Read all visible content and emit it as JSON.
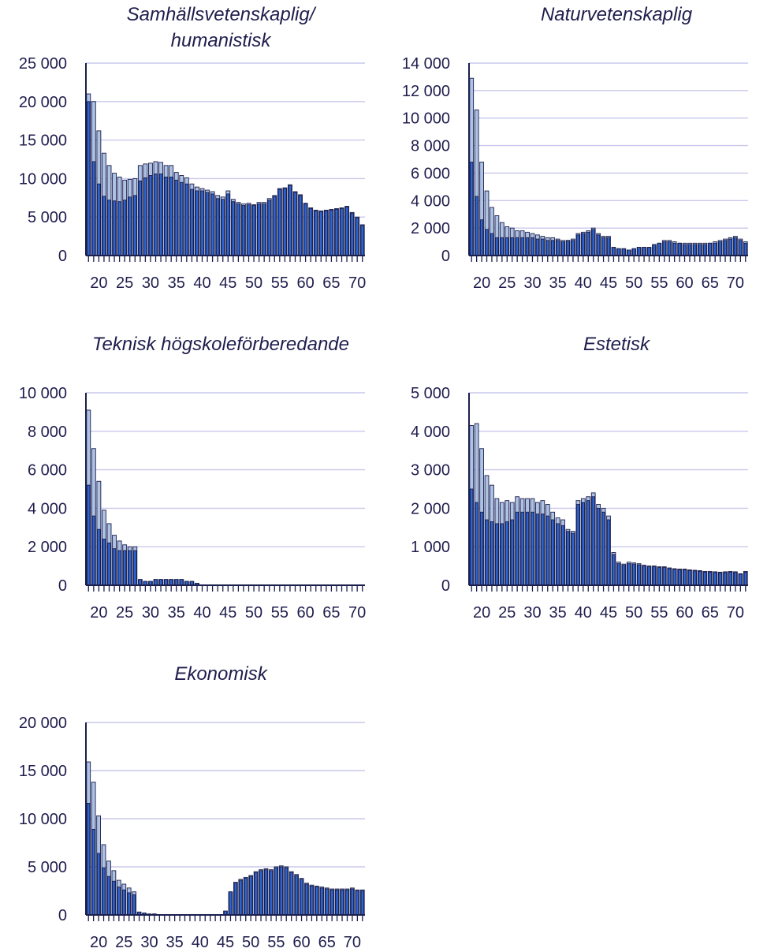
{
  "chart_data": [
    {
      "type": "bar",
      "title_lines": [
        "Samhällsvetenskaplig/",
        "humanistisk"
      ],
      "ylim": [
        0,
        25000
      ],
      "yticks": [
        0,
        5000,
        10000,
        15000,
        20000,
        25000
      ],
      "ytick_labels": [
        "0",
        "5 000",
        "10 000",
        "15 000",
        "20 000",
        "25 000"
      ],
      "xticks": [
        20,
        25,
        30,
        35,
        40,
        45,
        50,
        55,
        60,
        65,
        70
      ],
      "x_start": 18,
      "series": [
        {
          "values": [
            21000,
            20000,
            16200,
            13300,
            11700,
            10700,
            10200,
            9800,
            9900,
            10000,
            11700,
            11900,
            12000,
            12200,
            12100,
            11700,
            11700,
            10800,
            10400,
            10100,
            9300,
            8900,
            8700,
            8500,
            8300,
            7800,
            7600,
            8400,
            7300,
            6900,
            6700,
            6800,
            6600,
            6900,
            6900,
            7400,
            7800,
            8700,
            8800,
            9200,
            8300,
            7900,
            6800,
            6200,
            5900,
            5800,
            5900,
            6000,
            6100,
            6200,
            6400,
            5600,
            5000,
            4000
          ]
        },
        {
          "values": [
            20000,
            12200,
            9300,
            7700,
            7200,
            7100,
            7000,
            7200,
            7600,
            7800,
            9700,
            10100,
            10400,
            10600,
            10600,
            10200,
            10200,
            9800,
            9500,
            9300,
            8600,
            8400,
            8400,
            8200,
            8000,
            7400,
            7300,
            8000,
            7000,
            6700,
            6500,
            6600,
            6500,
            6700,
            6700,
            7200,
            7700,
            8600,
            8700,
            9100,
            8200,
            7800,
            6700,
            6100,
            5800,
            5700,
            5800,
            5900,
            6000,
            6100,
            6300,
            5500,
            4900,
            3900
          ]
        }
      ]
    },
    {
      "type": "bar",
      "title_lines": [
        "Naturvetenskaplig"
      ],
      "ylim": [
        0,
        14000
      ],
      "yticks": [
        0,
        2000,
        4000,
        6000,
        8000,
        10000,
        12000,
        14000
      ],
      "ytick_labels": [
        "0",
        "2 000",
        "4 000",
        "6 000",
        "8 000",
        "10 000",
        "12 000",
        "14 000"
      ],
      "xticks": [
        20,
        25,
        30,
        35,
        40,
        45,
        50,
        55,
        60,
        65,
        70
      ],
      "x_start": 18,
      "series": [
        {
          "values": [
            12900,
            10600,
            6800,
            4700,
            3500,
            2900,
            2400,
            2100,
            2000,
            1800,
            1800,
            1700,
            1600,
            1500,
            1400,
            1300,
            1300,
            1200,
            1100,
            1100,
            1200,
            1600,
            1700,
            1800,
            2000,
            1600,
            1400,
            1400,
            600,
            500,
            500,
            400,
            500,
            600,
            600,
            600,
            800,
            900,
            1100,
            1100,
            1000,
            900,
            900,
            900,
            900,
            900,
            900,
            900,
            1000,
            1100,
            1200,
            1300,
            1400,
            1200,
            1000
          ]
        },
        {
          "values": [
            6800,
            4300,
            2600,
            1900,
            1600,
            1300,
            1300,
            1300,
            1300,
            1300,
            1300,
            1300,
            1300,
            1200,
            1200,
            1100,
            1100,
            1100,
            1000,
            1100,
            1100,
            1500,
            1600,
            1700,
            1900,
            1500,
            1300,
            1300,
            600,
            500,
            500,
            400,
            500,
            600,
            600,
            600,
            800,
            900,
            1000,
            1000,
            900,
            900,
            800,
            800,
            800,
            800,
            800,
            900,
            900,
            1000,
            1100,
            1200,
            1300,
            1100,
            900
          ]
        }
      ]
    },
    {
      "type": "bar",
      "title_lines": [
        "Teknisk högskoleförberedande"
      ],
      "ylim": [
        0,
        10000
      ],
      "yticks": [
        0,
        2000,
        4000,
        6000,
        8000,
        10000
      ],
      "ytick_labels": [
        "0",
        "2 000",
        "4 000",
        "6 000",
        "8 000",
        "10 000"
      ],
      "xticks": [
        20,
        25,
        30,
        35,
        40,
        45,
        50,
        55,
        60,
        65,
        70
      ],
      "x_start": 18,
      "series": [
        {
          "values": [
            9100,
            7100,
            5400,
            3900,
            3200,
            2600,
            2300,
            2100,
            2000,
            2000,
            300,
            200,
            200,
            300,
            300,
            300,
            300,
            300,
            300,
            200,
            200,
            100,
            0,
            0,
            0,
            0,
            0,
            0,
            0,
            0,
            0,
            0,
            0,
            0,
            0,
            0,
            0,
            0,
            0,
            0,
            0,
            0,
            0,
            0,
            0,
            0,
            0,
            0,
            0,
            0,
            0,
            0,
            0,
            0
          ]
        },
        {
          "values": [
            5200,
            3600,
            2900,
            2400,
            2200,
            1900,
            1800,
            1800,
            1800,
            1800,
            300,
            200,
            200,
            300,
            300,
            300,
            300,
            300,
            300,
            200,
            200,
            100,
            0,
            0,
            0,
            0,
            0,
            0,
            0,
            0,
            0,
            0,
            0,
            0,
            0,
            0,
            0,
            0,
            0,
            0,
            0,
            0,
            0,
            0,
            0,
            0,
            0,
            0,
            0,
            0,
            0,
            0,
            0,
            0
          ]
        }
      ]
    },
    {
      "type": "bar",
      "title_lines": [
        "Estetisk"
      ],
      "ylim": [
        0,
        5000
      ],
      "yticks": [
        0,
        1000,
        2000,
        3000,
        4000,
        5000
      ],
      "ytick_labels": [
        "0",
        "1 000",
        "2 000",
        "3 000",
        "4 000",
        "5 000"
      ],
      "xticks": [
        20,
        25,
        30,
        35,
        40,
        45,
        50,
        55,
        60,
        65,
        70
      ],
      "x_start": 18,
      "series": [
        {
          "values": [
            4150,
            4200,
            3550,
            2850,
            2600,
            2250,
            2150,
            2200,
            2150,
            2300,
            2250,
            2250,
            2250,
            2150,
            2200,
            2100,
            1900,
            1750,
            1700,
            1450,
            1400,
            2200,
            2250,
            2300,
            2400,
            2100,
            2000,
            1800,
            850,
            600,
            550,
            600,
            580,
            560,
            520,
            500,
            500,
            480,
            480,
            450,
            430,
            420,
            420,
            400,
            390,
            380,
            360,
            360,
            350,
            340,
            350,
            360,
            350,
            300,
            360
          ]
        },
        {
          "values": [
            2500,
            2150,
            1900,
            1700,
            1650,
            1600,
            1600,
            1650,
            1700,
            1900,
            1900,
            1900,
            1900,
            1850,
            1850,
            1800,
            1700,
            1600,
            1550,
            1400,
            1350,
            2100,
            2150,
            2200,
            2300,
            2000,
            1900,
            1700,
            800,
            560,
            520,
            560,
            550,
            530,
            500,
            480,
            480,
            460,
            460,
            430,
            410,
            400,
            400,
            380,
            370,
            360,
            340,
            340,
            330,
            320,
            330,
            340,
            330,
            290,
            340
          ]
        }
      ]
    },
    {
      "type": "bar",
      "title_lines": [
        "Ekonomisk"
      ],
      "ylim": [
        0,
        20000
      ],
      "yticks": [
        0,
        5000,
        10000,
        15000,
        20000
      ],
      "ytick_labels": [
        "0",
        "5 000",
        "10 000",
        "15 000",
        "20 000"
      ],
      "xticks": [
        20,
        25,
        30,
        35,
        40,
        45,
        50,
        55,
        60,
        65,
        70
      ],
      "x_start": 18,
      "series": [
        {
          "values": [
            15900,
            13800,
            10300,
            7300,
            5600,
            4600,
            3600,
            3200,
            2800,
            2400,
            300,
            200,
            100,
            100,
            0,
            0,
            0,
            0,
            0,
            0,
            0,
            0,
            0,
            0,
            0,
            0,
            0,
            400,
            2400,
            3400,
            3700,
            3900,
            4100,
            4500,
            4700,
            4800,
            4700,
            5000,
            5100,
            5000,
            4500,
            4200,
            3800,
            3300,
            3100,
            3000,
            2900,
            2800,
            2700,
            2700,
            2700,
            2700,
            2800,
            2600,
            2600
          ]
        },
        {
          "values": [
            11600,
            8900,
            6400,
            4900,
            4000,
            3500,
            2900,
            2600,
            2300,
            2100,
            300,
            200,
            100,
            100,
            0,
            0,
            0,
            0,
            0,
            0,
            0,
            0,
            0,
            0,
            0,
            0,
            0,
            400,
            2400,
            3300,
            3600,
            3800,
            4000,
            4400,
            4600,
            4700,
            4600,
            4900,
            5000,
            4900,
            4400,
            4100,
            3700,
            3200,
            3000,
            2900,
            2800,
            2700,
            2600,
            2600,
            2600,
            2600,
            2700,
            2500,
            2500
          ]
        }
      ]
    }
  ]
}
